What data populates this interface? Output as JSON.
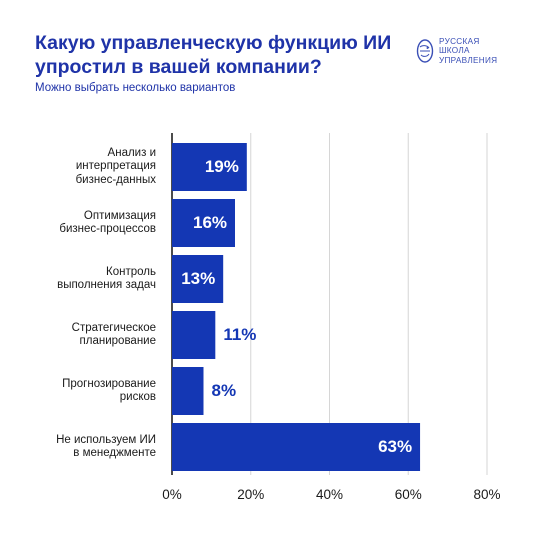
{
  "header": {
    "title": "Какую управленческую функцию ИИ упростил в вашей компании?",
    "subtitle": "Можно выбрать несколько вариантов"
  },
  "logo": {
    "text": "РУССКАЯ\nШКОЛА\nУПРАВЛЕНИЯ",
    "icon": "globe-head-icon"
  },
  "colors": {
    "bar": "#1437b4",
    "title": "#1f33a8",
    "value_outside": "#1437b4",
    "value_inside": "#ffffff",
    "grid": "#d6d6d6"
  },
  "chart_data": {
    "type": "bar",
    "orientation": "horizontal",
    "title": "Какую управленческую функцию ИИ упростил в вашей компании?",
    "subtitle": "Можно выбрать несколько вариантов",
    "categories": [
      "Анализ и\nинтерпретация\nбизнес-данных",
      "Оптимизация\nбизнес-процессов",
      "Контроль\nвыполнения задач",
      "Стратегическое\nпланирование",
      "Прогнозирование\nрисков",
      "Не используем ИИ\nв менеджменте"
    ],
    "values": [
      19,
      16,
      13,
      11,
      8,
      63
    ],
    "value_labels": [
      "19%",
      "16%",
      "13%",
      "11%",
      "8%",
      "63%"
    ],
    "xlim": [
      0,
      80
    ],
    "xticks": [
      0,
      20,
      40,
      60,
      80
    ],
    "xtick_labels": [
      "0%",
      "20%",
      "40%",
      "60%",
      "80%"
    ],
    "xlabel": "",
    "ylabel": "",
    "grid": true,
    "legend": "none"
  }
}
